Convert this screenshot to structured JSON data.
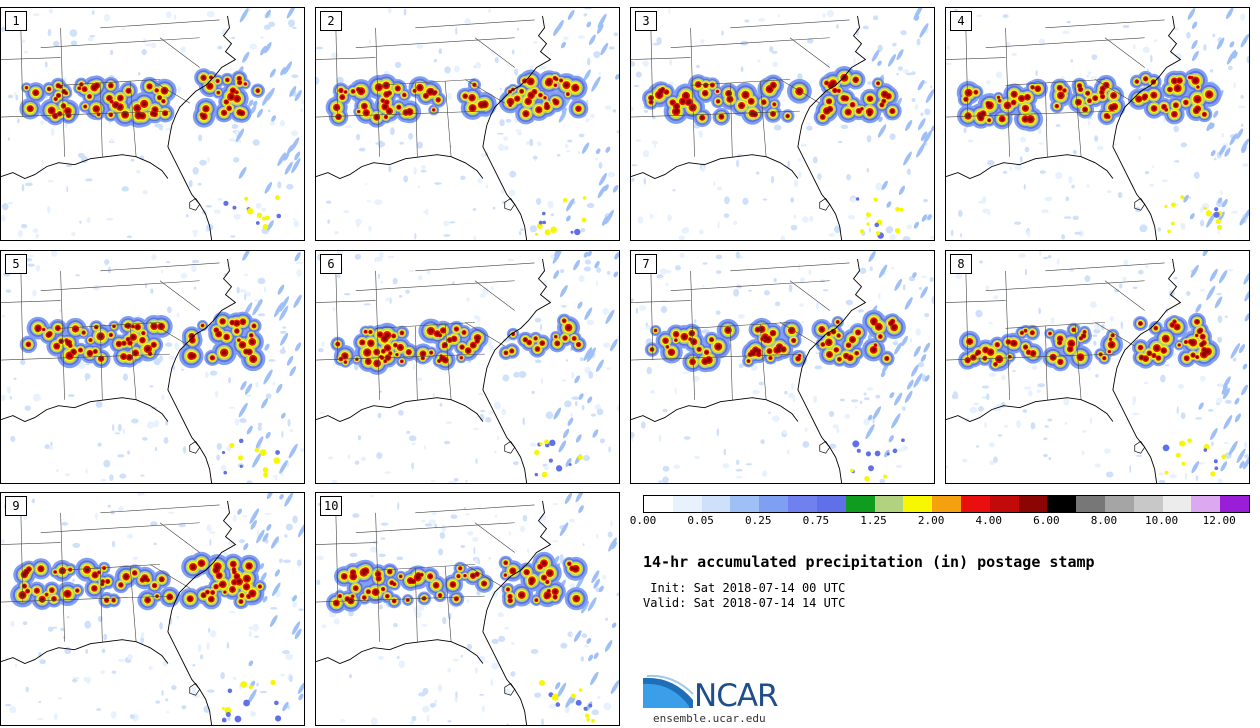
{
  "panels": [
    {
      "label": "1"
    },
    {
      "label": "2"
    },
    {
      "label": "3"
    },
    {
      "label": "4"
    },
    {
      "label": "5"
    },
    {
      "label": "6"
    },
    {
      "label": "7"
    },
    {
      "label": "8"
    },
    {
      "label": "9"
    },
    {
      "label": "10"
    }
  ],
  "colorbar": {
    "colors": [
      "#ffffff",
      "#e8f2ff",
      "#cfe0fb",
      "#9fbff7",
      "#7f9ff2",
      "#7080ee",
      "#5f70e8",
      "#0f9c1f",
      "#b2d27f",
      "#f6f700",
      "#f5a00f",
      "#e90f0f",
      "#c30a0a",
      "#8c0505",
      "#000000",
      "#777777",
      "#a5a5a5",
      "#c8c8c8",
      "#ececec",
      "#dca8f0",
      "#9a1ed8"
    ],
    "ticks": [
      "0.00",
      "0.05",
      "0.25",
      "0.75",
      "1.25",
      "2.00",
      "4.00",
      "6.00",
      "8.00",
      "10.00",
      "12.00"
    ]
  },
  "title": "14-hr accumulated precipitation (in) postage stamp",
  "init": " Init: Sat 2018-07-14 00 UTC",
  "valid": "Valid: Sat 2018-07-14 14 UTC",
  "logo": {
    "text": "NCAR",
    "url": "ensemble.ucar.edu"
  }
}
